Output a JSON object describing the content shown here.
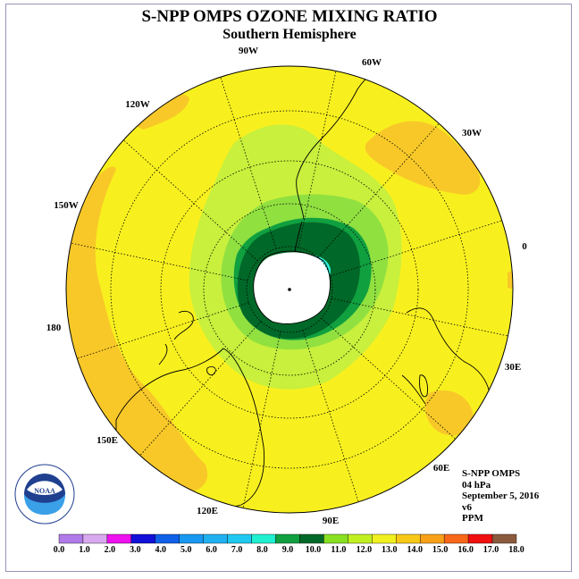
{
  "title": "S-NPP OMPS OZONE MIXING RATIO",
  "subtitle": "Southern Hemisphere",
  "longitude_labels": {
    "lon_90W": "90W",
    "lon_60W": "60W",
    "lon_120W": "120W",
    "lon_30W": "30W",
    "lon_150W": "150W",
    "lon_0": "0",
    "lon_180": "180",
    "lon_30E": "30E",
    "lon_150E": "150E",
    "lon_60E": "60E",
    "lon_120E": "120E",
    "lon_90E": "90E"
  },
  "info": {
    "instrument": "S-NPP OMPS",
    "level": "04 hPa",
    "date": "September 5, 2016",
    "version": "v6",
    "units": "PPM"
  },
  "logo": {
    "text": "NOAA"
  },
  "colorbar": {
    "ticks": [
      "0.0",
      "1.0",
      "2.0",
      "3.0",
      "4.0",
      "5.0",
      "6.0",
      "7.0",
      "8.0",
      "9.0",
      "10.0",
      "11.0",
      "12.0",
      "13.0",
      "14.0",
      "15.0",
      "16.0",
      "17.0",
      "18.0"
    ],
    "colors": [
      "#b07ae8",
      "#d9a9f0",
      "#ee10ee",
      "#1010d8",
      "#1060e8",
      "#1898f0",
      "#20b0f0",
      "#20c8f0",
      "#20f0d0",
      "#10a040",
      "#006828",
      "#88e020",
      "#c0f020",
      "#f0f020",
      "#f8c818",
      "#f8a018",
      "#f86818",
      "#f01010",
      "#8b5a3c"
    ]
  },
  "colors": {
    "ocean_yellow": "#f8f01e",
    "orange": "#f8c828",
    "lightgreen": "#c8f03c",
    "midgreen": "#90e040",
    "green": "#10a040",
    "darkgreen": "#006828",
    "cyan": "#30f0d8"
  }
}
